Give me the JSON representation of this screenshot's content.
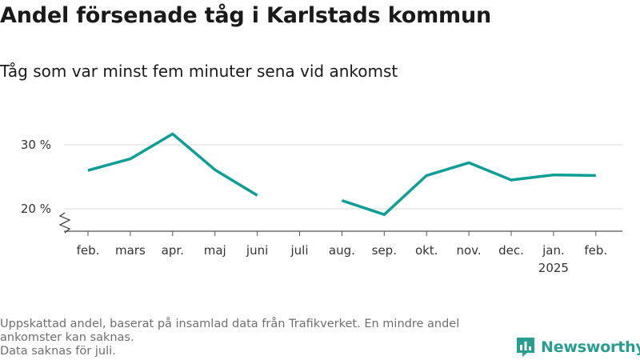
{
  "title": "Andel försenade tåg i Karlstads kommun",
  "subtitle": "Tåg som var minst fem minuter sena vid ankomst",
  "chart_data": {
    "type": "line",
    "categories": [
      "feb.",
      "mars",
      "apr.",
      "maj",
      "juni",
      "juli",
      "aug.",
      "sep.",
      "okt.",
      "nov.",
      "dec.",
      "jan.",
      "feb."
    ],
    "year_labels": [
      "",
      "",
      "",
      "",
      "",
      "",
      "",
      "",
      "",
      "",
      "",
      "2025",
      ""
    ],
    "values": [
      26.0,
      27.8,
      31.7,
      26.1,
      22.1,
      null,
      21.3,
      19.1,
      25.2,
      27.2,
      24.5,
      25.3,
      25.2
    ],
    "y_ticks": [
      20,
      30
    ],
    "y_tick_labels": [
      "20 %",
      "30 %"
    ],
    "ylim": [
      17,
      33
    ],
    "grid": true,
    "axis_break": true,
    "line_color": "#0f9e94"
  },
  "footnote": {
    "line1": "Uppskattad andel, baserat på insamlad data från Trafikverket. En mindre andel",
    "line2": "ankomster kan saknas.",
    "line3": "Data saknas för juli."
  },
  "brand": {
    "label": "Newsworthy",
    "icon": "newsworthy-logo-icon",
    "color": "#2a9d8f"
  }
}
